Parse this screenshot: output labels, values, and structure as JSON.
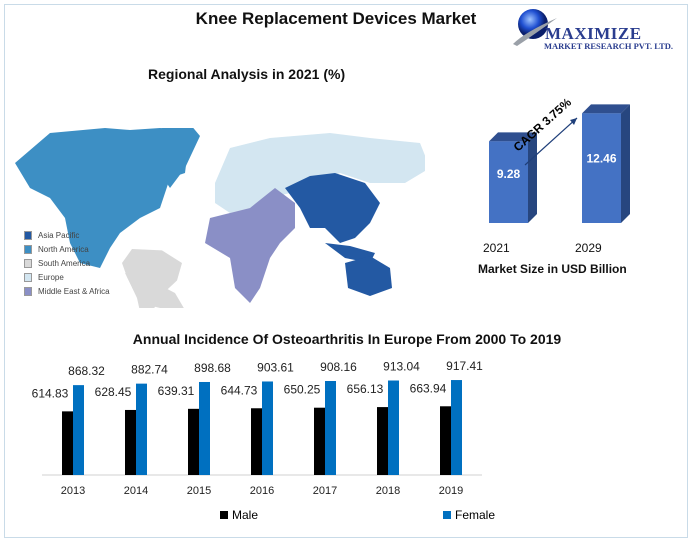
{
  "title": "Knee Replacement Devices Market",
  "logo": {
    "name": "MAXIMIZE",
    "sub": "MARKET RESEARCH PVT. LTD."
  },
  "map": {
    "title": "Regional Analysis in 2021 (%)",
    "legend": [
      {
        "label": "Asia Pacific",
        "color": "#2359a3"
      },
      {
        "label": "North America",
        "color": "#3d8fc4"
      },
      {
        "label": "South America",
        "color": "#d9d9d9"
      },
      {
        "label": "Europe",
        "color": "#d3e6f1"
      },
      {
        "label": "Middle East & Africa",
        "color": "#8a8fc6"
      }
    ]
  },
  "chart_data": [
    {
      "type": "bar",
      "categories": [
        "2021",
        "2029"
      ],
      "values": [
        9.28,
        12.46
      ],
      "value_labels": [
        "9.28",
        "12.46"
      ],
      "xlabel": "Market Size in USD Billion",
      "annotation": "CAGR 3.75%",
      "color": "#4472c4"
    },
    {
      "type": "bar",
      "title": "Annual Incidence Of Osteoarthritis In Europe From 2000 To 2019",
      "categories": [
        "2013",
        "2014",
        "2015",
        "2016",
        "2017",
        "2018",
        "2019"
      ],
      "series": [
        {
          "name": "Male",
          "color": "#000000",
          "values": [
            614.83,
            628.45,
            639.31,
            644.73,
            650.25,
            656.13,
            663.94
          ]
        },
        {
          "name": "Female",
          "color": "#0070c0",
          "values": [
            868.32,
            882.74,
            898.68,
            903.61,
            908.16,
            913.04,
            917.41
          ]
        }
      ],
      "ylim": [
        0,
        1000
      ],
      "grid": false,
      "legend": "bottom"
    }
  ]
}
